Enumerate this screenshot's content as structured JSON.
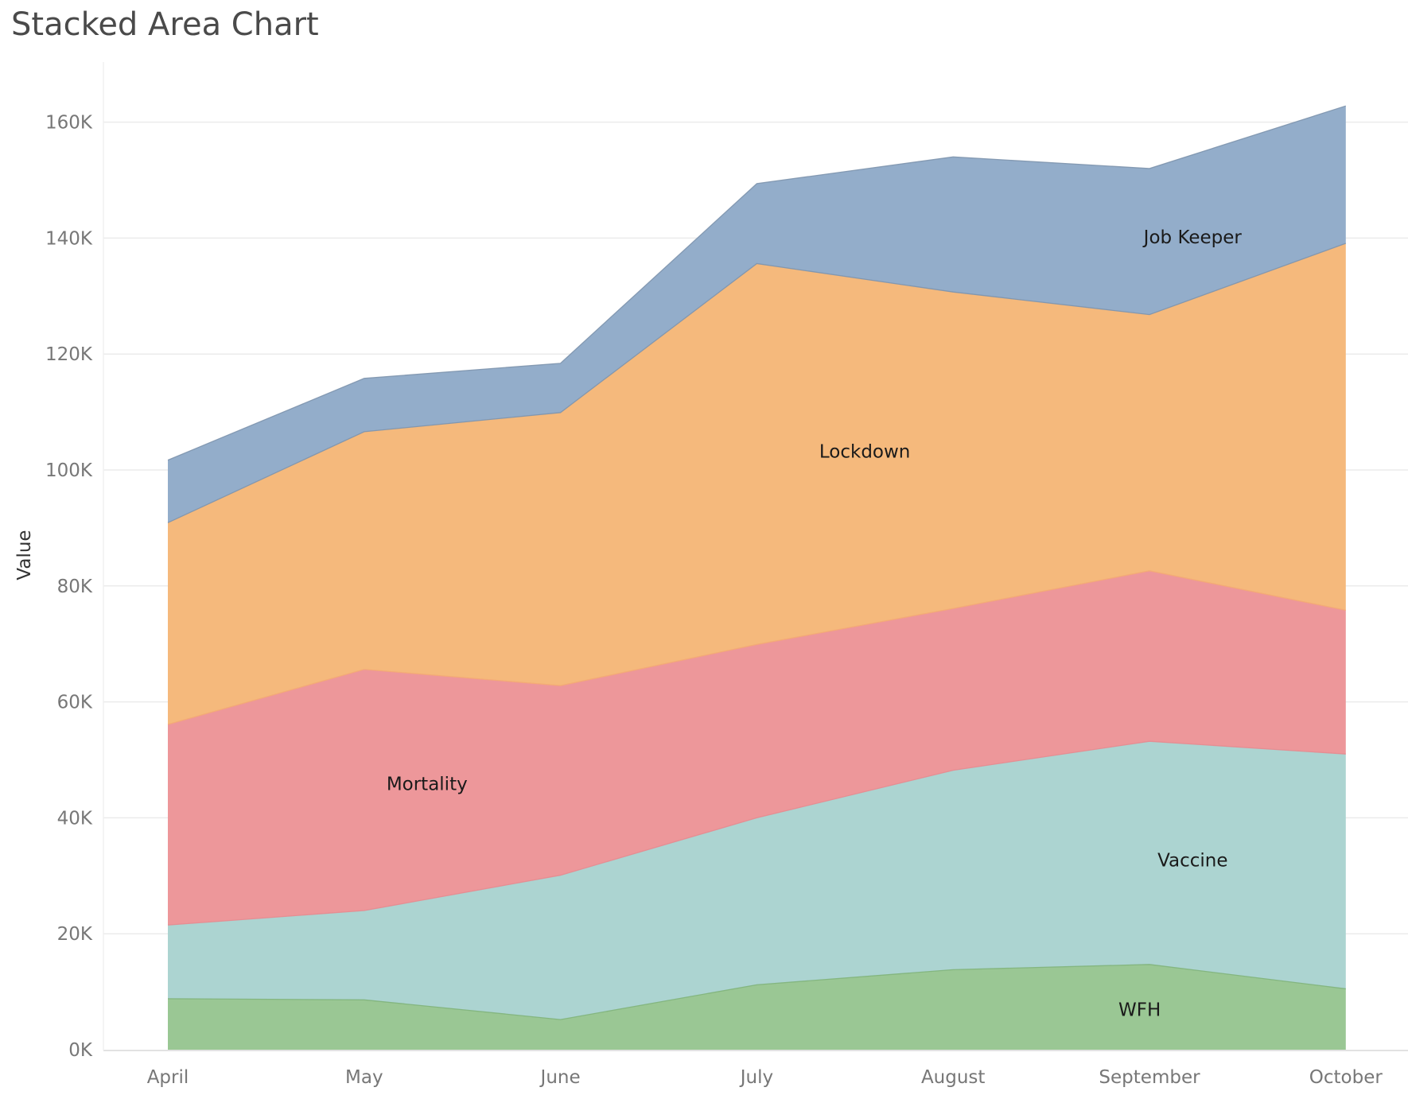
{
  "title": "Stacked Area Chart",
  "chart_data": {
    "type": "area",
    "stacked": true,
    "title": "Stacked Area Chart",
    "xlabel": "",
    "ylabel": "Value",
    "categories": [
      "April",
      "May",
      "June",
      "July",
      "August",
      "September",
      "October"
    ],
    "ylim": [
      0,
      170000
    ],
    "yticks": [
      0,
      20000,
      40000,
      60000,
      80000,
      100000,
      120000,
      140000,
      160000
    ],
    "ytick_labels": [
      "0K",
      "20K",
      "40K",
      "60K",
      "80K",
      "100K",
      "120K",
      "140K",
      "160K"
    ],
    "grid": "horizontal",
    "legend": "inline labels",
    "series": [
      {
        "name": "WFH",
        "color": "#9ac794",
        "line_color": "#7fb27a",
        "values": [
          8800,
          8600,
          5200,
          11200,
          13800,
          14700,
          10500
        ]
      },
      {
        "name": "Vaccine",
        "color": "#acd4d1",
        "line_color": "#e58a8f",
        "values": [
          12700,
          15400,
          24900,
          28800,
          34400,
          38500,
          40500
        ]
      },
      {
        "name": "Mortality",
        "color": "#ed979a",
        "line_color": "#f4a974",
        "values": [
          34600,
          41600,
          32700,
          29900,
          27900,
          29400,
          24800
        ]
      },
      {
        "name": "Lockdown",
        "color": "#f5b97c",
        "line_color": "#7d93ad",
        "values": [
          34800,
          41000,
          47100,
          65700,
          54600,
          44200,
          63300
        ]
      },
      {
        "name": "Job Keeper",
        "color": "#93adca",
        "line_color": "#7d93ad",
        "values": [
          10800,
          9200,
          8500,
          13800,
          23300,
          25200,
          23700
        ]
      }
    ],
    "annotations": [
      {
        "text": "Job Keeper",
        "series": "Job Keeper",
        "x_pos": 5.22,
        "y": 140200
      },
      {
        "text": "Lockdown",
        "series": "Lockdown",
        "x_pos": 3.55,
        "y": 103200
      },
      {
        "text": "Mortality",
        "series": "Mortality",
        "x_pos": 1.32,
        "y": 45900
      },
      {
        "text": "Vaccine",
        "series": "Vaccine",
        "x_pos": 5.22,
        "y": 32700
      },
      {
        "text": "WFH",
        "series": "WFH",
        "x_pos": 4.95,
        "y": 6900
      }
    ]
  }
}
